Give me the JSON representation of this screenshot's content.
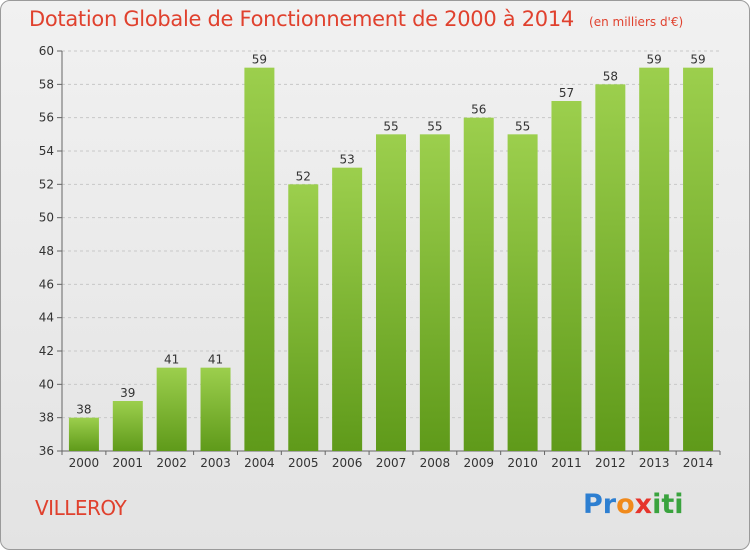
{
  "header": {
    "title": "Dotation Globale de Fonctionnement de 2000 à 2014",
    "unit": "(en milliers d'€)"
  },
  "footer": {
    "commune": "VILLEROY",
    "logo": {
      "p": "Pr",
      "o": "o",
      "x": "x",
      "iti": "iti"
    }
  },
  "colors": {
    "title": "#e0412e",
    "bar_top": "#9ccf4d",
    "bar_bottom": "#5f9a1a",
    "grid": "#c8c8c8"
  },
  "chart_data": {
    "type": "bar",
    "title": "Dotation Globale de Fonctionnement de 2000 à 2014",
    "subtitle": "(en milliers d'€)",
    "categories": [
      "2000",
      "2001",
      "2002",
      "2003",
      "2004",
      "2005",
      "2006",
      "2007",
      "2008",
      "2009",
      "2010",
      "2011",
      "2012",
      "2013",
      "2014"
    ],
    "values": [
      38,
      39,
      41,
      41,
      59,
      52,
      53,
      55,
      55,
      56,
      55,
      57,
      58,
      59,
      59
    ],
    "ylim": [
      36,
      60
    ],
    "yticks": [
      36,
      38,
      40,
      42,
      44,
      46,
      48,
      50,
      52,
      54,
      56,
      58,
      60
    ],
    "grid": true,
    "legend": "none",
    "data_labels": true
  }
}
